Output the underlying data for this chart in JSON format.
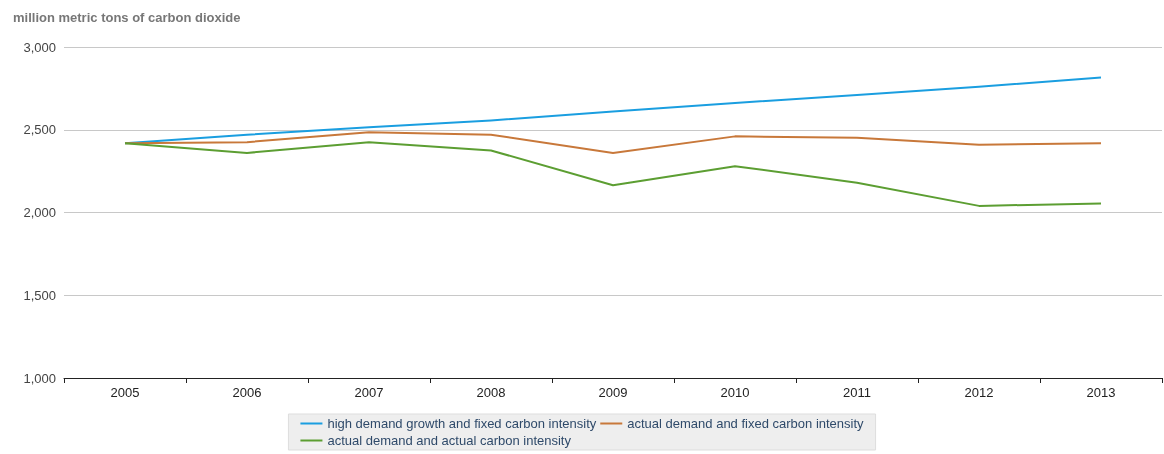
{
  "chart_data": {
    "type": "line",
    "ylabel": "million metric tons of carbon dioxide",
    "categories": [
      "2005",
      "2006",
      "2007",
      "2008",
      "2009",
      "2010",
      "2011",
      "2012",
      "2013"
    ],
    "series": [
      {
        "name": "high demand growth and fixed carbon intensity",
        "color": "#1a9ee0",
        "values": [
          2418,
          2470,
          2515,
          2556,
          2610,
          2662,
          2710,
          2760,
          2815
        ]
      },
      {
        "name": "actual demand and fixed carbon intensity",
        "color": "#c8783a",
        "values": [
          2418,
          2425,
          2485,
          2470,
          2360,
          2460,
          2452,
          2410,
          2418
        ]
      },
      {
        "name": "actual demand and actual carbon intensity",
        "color": "#5c9e32",
        "values": [
          2418,
          2360,
          2425,
          2375,
          2165,
          2280,
          2180,
          2040,
          2055
        ]
      }
    ],
    "ylim": [
      1000,
      3000
    ],
    "yticks": [
      {
        "value": 1000,
        "label": "1,000"
      },
      {
        "value": 1500,
        "label": "1,500"
      },
      {
        "value": 2000,
        "label": "2,000"
      },
      {
        "value": 2500,
        "label": "2,500"
      },
      {
        "value": 3000,
        "label": "3,000"
      }
    ],
    "grid": "y",
    "legend": "bottom",
    "marker": "none",
    "line_style": "solid"
  }
}
